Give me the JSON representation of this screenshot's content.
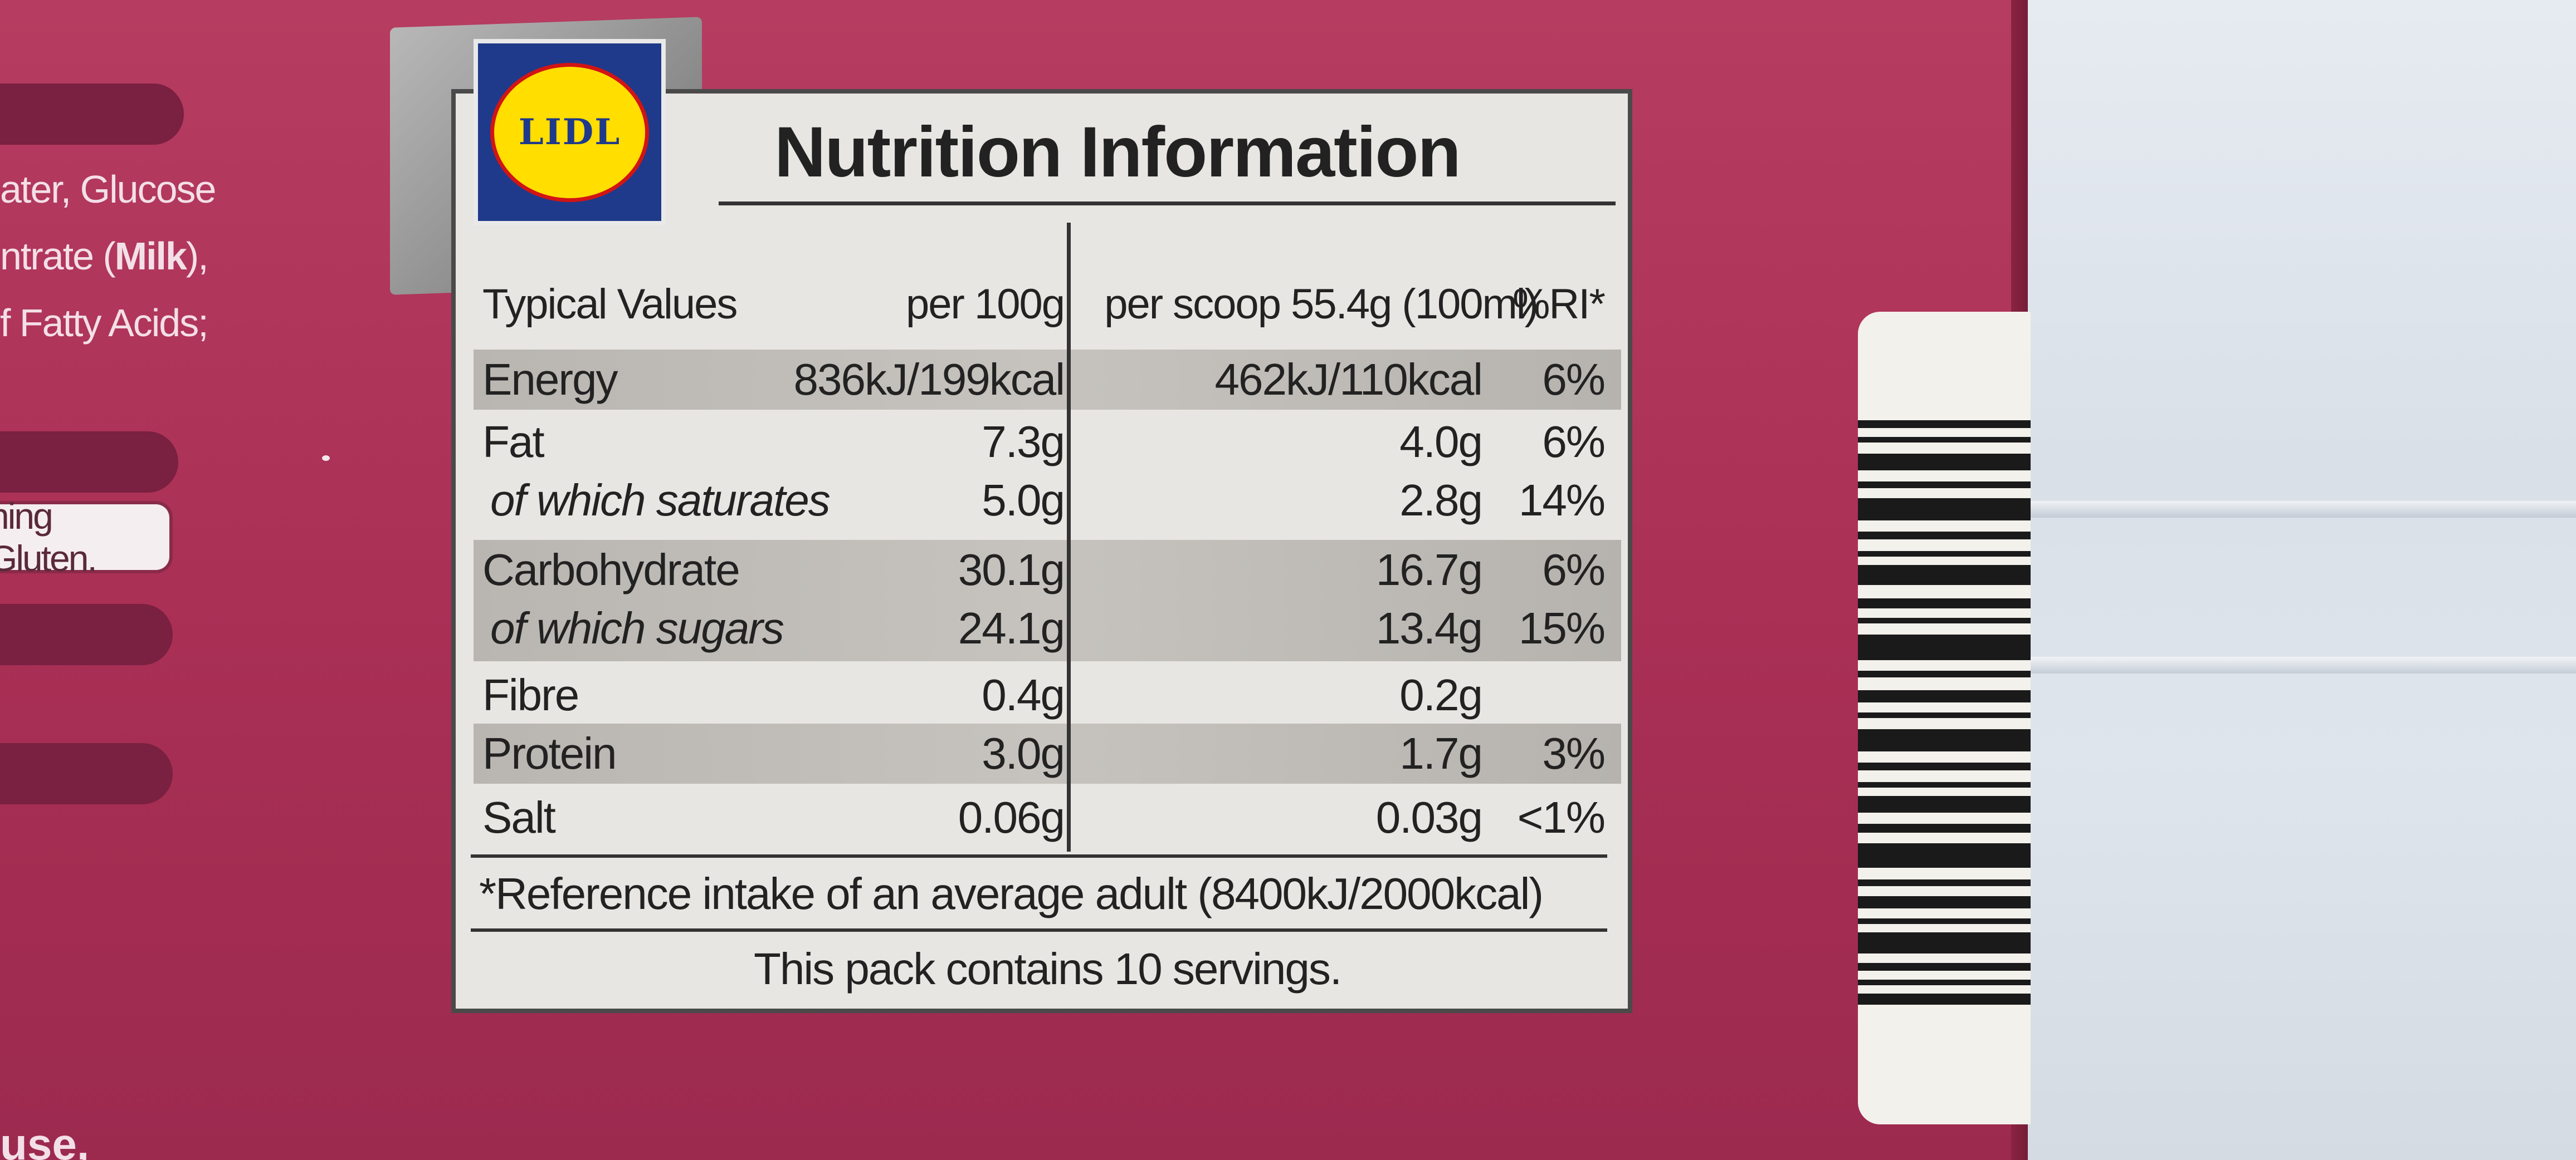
{
  "logo": {
    "text": "LIDL"
  },
  "left_text": {
    "line1": "ater, Glucose",
    "line2a": "ntrate (",
    "line2b": "Milk",
    "line2c": "),",
    "line3": "f Fatty Acids;",
    "gluten": "ning Gluten.",
    "bottom": "use,"
  },
  "nutrition": {
    "title": "Nutrition Information",
    "headers": {
      "label": "Typical Values",
      "per100": "per 100g",
      "scoop": "per scoop 55.4g (100ml)",
      "ri": "%RI*"
    },
    "rows": [
      {
        "label": "Energy",
        "per100": "836kJ/199kcal",
        "scoop": "462kJ/110kcal",
        "ri": "6%"
      },
      {
        "label": "Fat",
        "per100": "7.3g",
        "scoop": "4.0g",
        "ri": "6%"
      },
      {
        "label": "of which saturates",
        "per100": "5.0g",
        "scoop": "2.8g",
        "ri": "14%"
      },
      {
        "label": "Carbohydrate",
        "per100": "30.1g",
        "scoop": "16.7g",
        "ri": "6%"
      },
      {
        "label": "of which sugars",
        "per100": "24.1g",
        "scoop": "13.4g",
        "ri": "15%"
      },
      {
        "label": "Fibre",
        "per100": "0.4g",
        "scoop": "0.2g",
        "ri": ""
      },
      {
        "label": "Protein",
        "per100": "3.0g",
        "scoop": "1.7g",
        "ri": "3%"
      },
      {
        "label": "Salt",
        "per100": "0.06g",
        "scoop": "0.03g",
        "ri": "<1%"
      }
    ],
    "reference": "*Reference intake of an average adult (8400kJ/2000kcal)",
    "servings": "This pack contains 10 servings."
  }
}
